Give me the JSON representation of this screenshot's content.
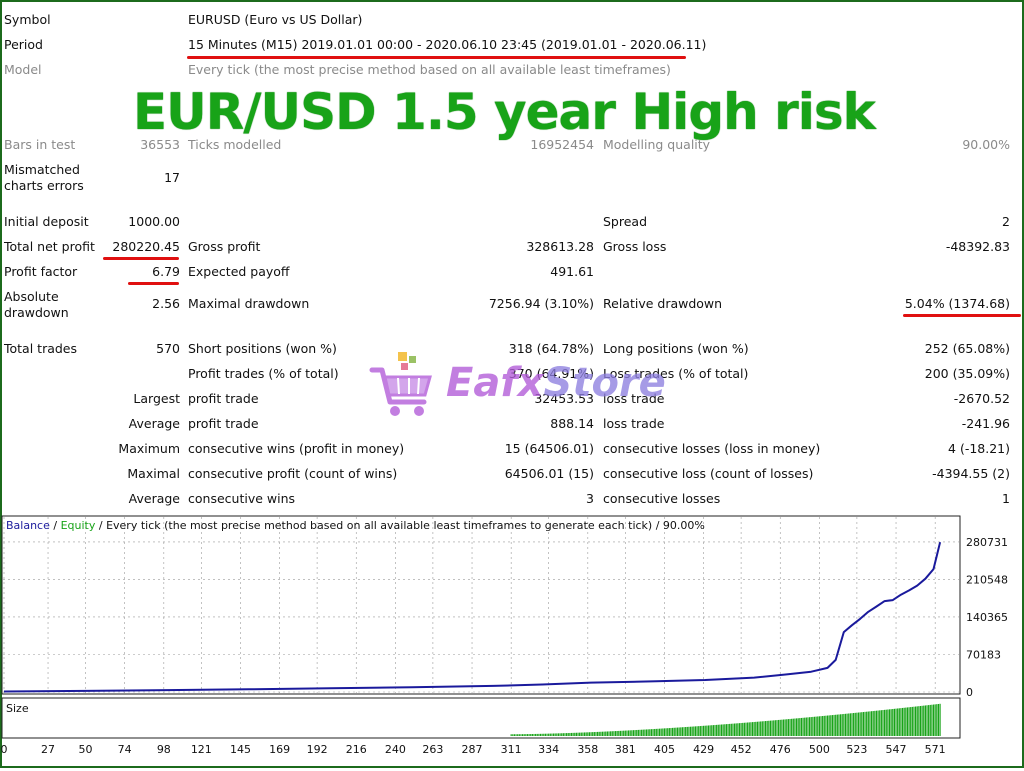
{
  "report": {
    "symbol_label": "Symbol",
    "symbol_value": "EURUSD (Euro vs US Dollar)",
    "period_label": "Period",
    "period_value": "15 Minutes (M15) 2019.01.01 00:00 - 2020.06.10 23:45 (2019.01.01 - 2020.06.11)",
    "model_label": "Model",
    "model_value": "Every tick (the most precise method based on all available least timeframes)",
    "bars_label": "Bars in test",
    "bars_value": "36553",
    "ticks_label": "Ticks modelled",
    "ticks_value": "16952454",
    "quality_label": "Modelling quality",
    "quality_value": "90.00%",
    "mismatch_label": "Mismatched charts errors",
    "mismatch_value": "17",
    "deposit_label": "Initial deposit",
    "deposit_value": "1000.00",
    "spread_label": "Spread",
    "spread_value": "2",
    "net_profit_label": "Total net profit",
    "net_profit_value": "280220.45",
    "gross_profit_label": "Gross profit",
    "gross_profit_value": "328613.28",
    "gross_loss_label": "Gross loss",
    "gross_loss_value": "-48392.83",
    "profit_factor_label": "Profit factor",
    "profit_factor_value": "6.79",
    "expected_payoff_label": "Expected payoff",
    "expected_payoff_value": "491.61",
    "abs_drawdown_label": "Absolute drawdown",
    "abs_drawdown_value": "2.56",
    "max_drawdown_label": "Maximal drawdown",
    "max_drawdown_value": "7256.94 (3.10%)",
    "rel_drawdown_label": "Relative drawdown",
    "rel_drawdown_value": "5.04% (1374.68)",
    "total_trades_label": "Total trades",
    "total_trades_value": "570",
    "short_label": "Short positions (won %)",
    "short_value": "318 (64.78%)",
    "long_label": "Long positions (won %)",
    "long_value": "252 (65.08%)",
    "profit_trades_label": "Profit trades (% of total)",
    "profit_trades_value": "370 (64.91%)",
    "loss_trades_label": "Loss trades (% of total)",
    "loss_trades_value": "200 (35.09%)",
    "largest_label": "Largest",
    "largest_profit_label": "profit trade",
    "largest_profit_value": "32453.53",
    "largest_loss_label": "loss trade",
    "largest_loss_value": "-2670.52",
    "average_label": "Average",
    "avg_profit_label": "profit trade",
    "avg_profit_value": "888.14",
    "avg_loss_label": "loss trade",
    "avg_loss_value": "-241.96",
    "maximum_label": "Maximum",
    "max_wins_label": "consecutive wins (profit in money)",
    "max_wins_value": "15 (64506.01)",
    "max_losses_label": "consecutive losses (loss in money)",
    "max_losses_value": "4 (-18.21)",
    "maximal_label": "Maximal",
    "maximal_profit_label": "consecutive profit (count of wins)",
    "maximal_profit_value": "64506.01 (15)",
    "maximal_loss_label": "consecutive loss (count of losses)",
    "maximal_loss_value": "-4394.55 (2)",
    "average2_label": "Average",
    "avg_wins_label": "consecutive wins",
    "avg_wins_value": "3",
    "avg_losses_label": "consecutive losses",
    "avg_losses_value": "1"
  },
  "overlay_title": "EUR/USD  1.5 year High risk",
  "watermark": {
    "part1": "Eafx",
    "part2": "Store"
  },
  "colors": {
    "balance": "#1a1a9c",
    "equity": "#18a318",
    "highlight": "#e01010",
    "title": "#18a318"
  },
  "chart_data": {
    "type": "line",
    "legend_balance": "Balance",
    "legend_sep1": " / ",
    "legend_equity": "Equity",
    "legend_rest": " / Every tick (the most precise method based on all available least timeframes to generate each tick) / 90.00%",
    "size_label": "Size",
    "x_ticks": [
      0,
      27,
      50,
      74,
      98,
      121,
      145,
      169,
      192,
      216,
      240,
      263,
      287,
      311,
      334,
      358,
      381,
      405,
      429,
      452,
      476,
      500,
      523,
      547,
      571
    ],
    "y_ticks": [
      0,
      70183,
      140365,
      210548,
      280731
    ],
    "xlim": [
      0,
      585
    ],
    "ylim": [
      0,
      290000
    ],
    "series": [
      {
        "name": "Balance",
        "x": [
          0,
          50,
          100,
          150,
          200,
          250,
          300,
          330,
          360,
          400,
          430,
          460,
          480,
          495,
          505,
          510,
          515,
          520,
          525,
          530,
          535,
          540,
          545,
          550,
          555,
          560,
          565,
          570,
          572,
          574
        ],
        "values": [
          1000,
          2000,
          3500,
          5000,
          7000,
          9000,
          11500,
          14000,
          17500,
          20000,
          22500,
          27000,
          33000,
          38000,
          45000,
          60000,
          112000,
          125000,
          137000,
          150000,
          160000,
          170000,
          172000,
          182000,
          190000,
          199000,
          212000,
          230000,
          255000,
          280220
        ]
      }
    ],
    "size_bars": {
      "start": 311,
      "end": 574,
      "min_height": 0.05,
      "max_height": 0.92
    }
  }
}
